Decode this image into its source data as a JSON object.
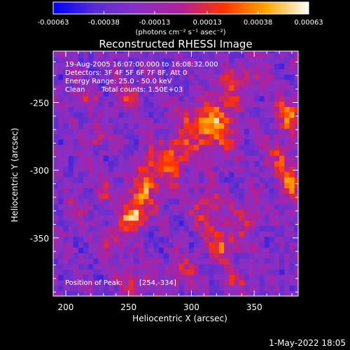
{
  "chart_data": {
    "type": "heatmap",
    "title": "Reconstructed RHESSI Image",
    "xlabel": "Heliocentric X (arcsec)",
    "ylabel": "Heliocentric Y (arcsec)",
    "xlim": [
      190,
      385
    ],
    "ylim": [
      -393,
      -212
    ],
    "x_ticks": [
      200,
      250,
      300,
      350
    ],
    "y_ticks": [
      -250,
      -300,
      -350
    ],
    "x_tick_labels": [
      "200",
      "250",
      "300",
      "350"
    ],
    "y_tick_labels": [
      "-250",
      "-300",
      "-350"
    ],
    "colorbar": {
      "range": [
        -0.00063,
        0.00063
      ],
      "ticks": [
        -0.00063,
        -0.00038,
        -0.00013,
        0.00013,
        0.00038,
        0.00063
      ],
      "tick_labels": [
        "-0.00063",
        "-0.00038",
        "-0.00013",
        "0.00013",
        "0.00038",
        "0.00063"
      ],
      "units_label": "(photons cm⁻² s⁻¹ asec⁻²)",
      "colors": [
        "#0000ff",
        "#5a2dd2",
        "#8a2fc4",
        "#b0209a",
        "#ff3300",
        "#ffa500",
        "#ffffff"
      ]
    },
    "annotations": [
      "19-Aug-2005 16:07:00.000 to 16:08:32.000",
      "Detectors: 3F 4F 5F 6F 7F 8F, Att 0",
      "Energy Range: 25.0 - 50.0 keV",
      "Clean",
      "Total counts: 1.50E+03"
    ],
    "peak_label": "Position of Peak:",
    "peak_value": "[254,-334]",
    "peak_position": [
      254,
      -334
    ],
    "plot_date": "1-May-2022 18:05",
    "pixel_size_arcsec": 4.0,
    "emission_sources": [
      {
        "x": 254,
        "y": -334,
        "amplitude": 1.0,
        "sx": 6,
        "sy": 6
      },
      {
        "x": 260,
        "y": -318,
        "amplitude": 0.55,
        "sx": 8,
        "sy": 10
      },
      {
        "x": 265,
        "y": -300,
        "amplitude": 0.45,
        "sx": 6,
        "sy": 12
      },
      {
        "x": 240,
        "y": -350,
        "amplitude": 0.4,
        "sx": 9,
        "sy": 8
      },
      {
        "x": 305,
        "y": -265,
        "amplitude": 0.6,
        "sx": 12,
        "sy": 10
      },
      {
        "x": 322,
        "y": -270,
        "amplitude": 0.55,
        "sx": 10,
        "sy": 14
      },
      {
        "x": 330,
        "y": -240,
        "amplitude": 0.45,
        "sx": 8,
        "sy": 10
      },
      {
        "x": 290,
        "y": -285,
        "amplitude": 0.5,
        "sx": 10,
        "sy": 8
      },
      {
        "x": 282,
        "y": -300,
        "amplitude": 0.45,
        "sx": 8,
        "sy": 10
      },
      {
        "x": 325,
        "y": -355,
        "amplitude": 0.6,
        "sx": 8,
        "sy": 8
      },
      {
        "x": 313,
        "y": -330,
        "amplitude": 0.45,
        "sx": 9,
        "sy": 12
      },
      {
        "x": 344,
        "y": -335,
        "amplitude": 0.4,
        "sx": 8,
        "sy": 10
      },
      {
        "x": 378,
        "y": -260,
        "amplitude": 0.65,
        "sx": 8,
        "sy": 10
      },
      {
        "x": 378,
        "y": -310,
        "amplitude": 0.6,
        "sx": 6,
        "sy": 12
      },
      {
        "x": 368,
        "y": -292,
        "amplitude": 0.4,
        "sx": 8,
        "sy": 8
      },
      {
        "x": 225,
        "y": -275,
        "amplitude": 0.45,
        "sx": 6,
        "sy": 6
      },
      {
        "x": 250,
        "y": -245,
        "amplitude": 0.4,
        "sx": 8,
        "sy": 8
      },
      {
        "x": 215,
        "y": -248,
        "amplitude": 0.35,
        "sx": 7,
        "sy": 7
      },
      {
        "x": 258,
        "y": -382,
        "amplitude": 0.45,
        "sx": 9,
        "sy": 7
      },
      {
        "x": 292,
        "y": -375,
        "amplitude": 0.45,
        "sx": 8,
        "sy": 8
      },
      {
        "x": 335,
        "y": -382,
        "amplitude": 0.35,
        "sx": 8,
        "sy": 6
      },
      {
        "x": 230,
        "y": -315,
        "amplitude": 0.3,
        "sx": 7,
        "sy": 7
      },
      {
        "x": 350,
        "y": -230,
        "amplitude": 0.35,
        "sx": 9,
        "sy": 7
      },
      {
        "x": 205,
        "y": -330,
        "amplitude": 0.25,
        "sx": 6,
        "sy": 8
      }
    ]
  }
}
